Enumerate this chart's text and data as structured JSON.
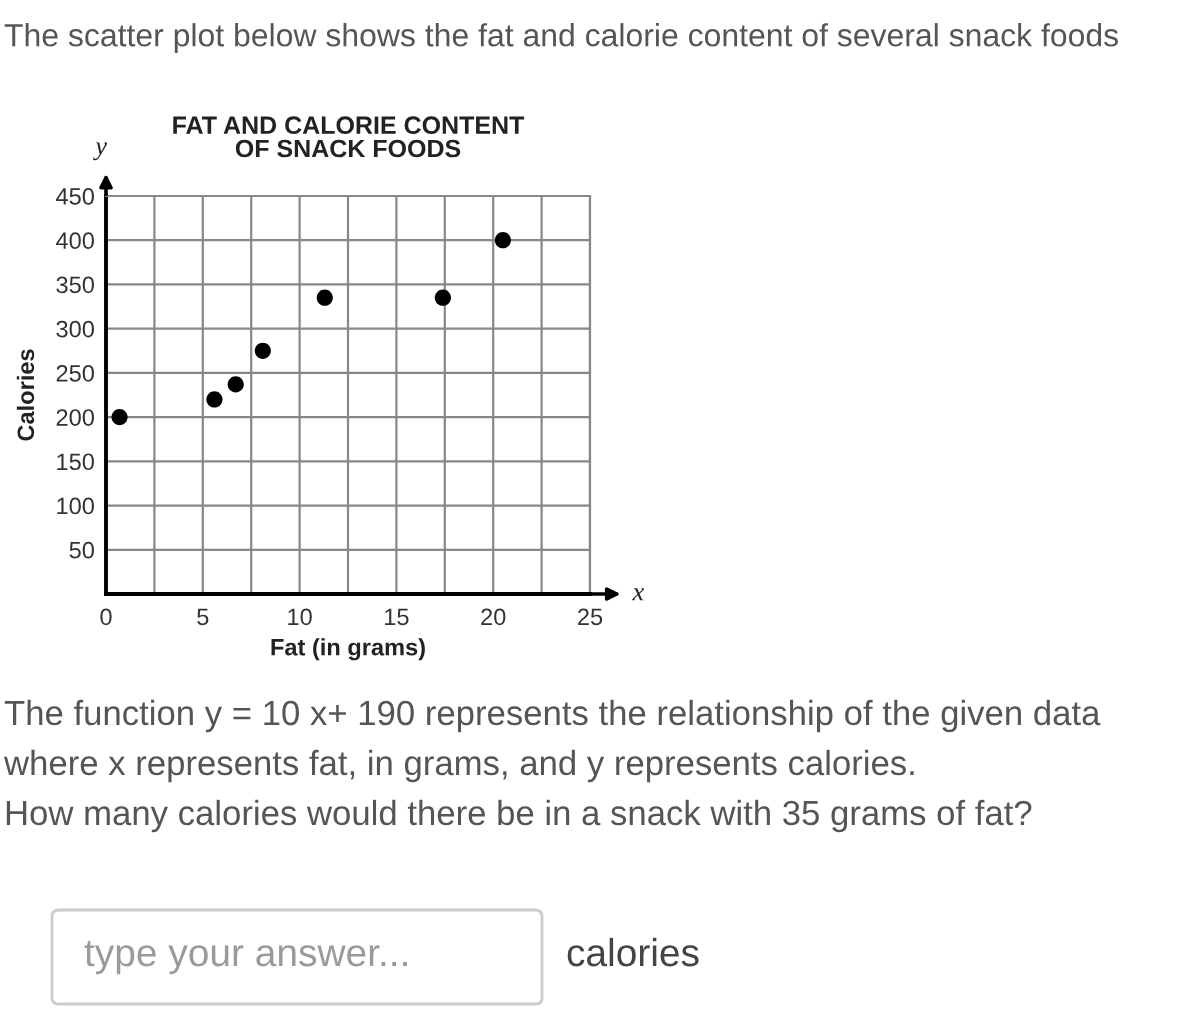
{
  "chart_data": {
    "type": "scatter",
    "title": "FAT AND CALORIE CONTENT\nOF SNACK FOODS",
    "xlabel": "Fat (in grams)",
    "ylabel": "Calories",
    "x": [
      0.7,
      5.6,
      6.7,
      8.1,
      11.3,
      17.4,
      20.5
    ],
    "series": [
      {
        "color": "#000000",
        "values": [
          200,
          220,
          237,
          275,
          335,
          335,
          400
        ]
      }
    ],
    "xlim": [
      0,
      25
    ],
    "ylim": [
      0,
      450
    ],
    "xticks": [
      {
        "value": 0,
        "label": "0"
      },
      {
        "value": 2.5,
        "label": null
      },
      5,
      {
        "value": 7.5,
        "label": null
      },
      10,
      {
        "value": 12.5,
        "label": null
      },
      15,
      {
        "value": 17.5,
        "label": null
      },
      20,
      {
        "value": 22.5,
        "label": null
      },
      25
    ],
    "yticks": [
      {
        "value": 0,
        "label": null
      },
      50,
      100,
      150,
      200,
      250,
      300,
      350,
      400,
      450
    ],
    "grid": true,
    "marker": "circle",
    "annotations": [
      "The scatter plot below shows the fat and calorie content of several snack foods",
      "x",
      "y",
      "The function y = 10 x+ 190 represents the relationship of the given data",
      "where x represents fat, in grams, and y represents calories.",
      "How many calories would there be in a snack with 35 grams of fat?",
      "type your answer...",
      "calories"
    ]
  }
}
